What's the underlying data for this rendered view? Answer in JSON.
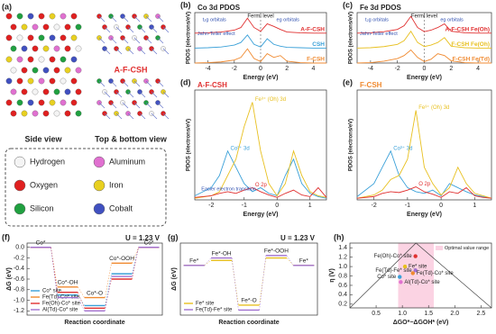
{
  "panel_labels": [
    "(a)",
    "(b)",
    "(c)",
    "(d)",
    "(e)",
    "(f)",
    "(g)",
    "(h)"
  ],
  "structure": {
    "side_label": "Side view",
    "top_label": "Top & bottom view",
    "name": "A-F-CSH"
  },
  "atom_legend": [
    {
      "name": "Hydrogen",
      "color": "#f4f4f4"
    },
    {
      "name": "Aluminum",
      "color": "#e070d0"
    },
    {
      "name": "Oxygen",
      "color": "#e02020"
    },
    {
      "name": "Iron",
      "color": "#e8d020"
    },
    {
      "name": "Silicon",
      "color": "#20a040"
    },
    {
      "name": "Cobalt",
      "color": "#4050c0"
    }
  ],
  "chart_data": [
    {
      "type": "line",
      "title": "Co 3d PDOS",
      "x_label": "Energy (eV)",
      "y_label": "PDOS (electrons/eV)",
      "xlim": [
        -5,
        5
      ],
      "ylim": [
        0,
        13.5
      ],
      "xticks": [
        -4,
        -2,
        0,
        2,
        4
      ],
      "fermi_level": {
        "x": 0,
        "label": "Fermi level"
      },
      "annotations": [
        "t₂g orbitals",
        "eg orbitals",
        "Jahn-Teller effect"
      ],
      "x": [
        -5,
        -4,
        -3,
        -2,
        -1.5,
        -1,
        -0.5,
        0,
        0.5,
        1,
        1.5,
        2,
        3,
        4,
        5
      ],
      "series": [
        {
          "name": "A-F-CSH",
          "color": "#e03030",
          "values": [
            8,
            8.1,
            8.3,
            8.8,
            9.5,
            12,
            9.5,
            8.5,
            10.5,
            9.8,
            9,
            8.3,
            8.1,
            8,
            8
          ]
        },
        {
          "name": "CSH",
          "color": "#3aa0d8",
          "values": [
            4,
            4.1,
            4.3,
            4.8,
            5.5,
            7.5,
            5,
            4.3,
            6.5,
            5,
            4.5,
            4.2,
            4.1,
            4,
            4
          ]
        },
        {
          "name": "F-CSH",
          "color": "#f08a30",
          "values": [
            0,
            0.1,
            0.3,
            0.8,
            1.5,
            3.8,
            1.2,
            0.4,
            2.5,
            1.5,
            2,
            0.5,
            0.1,
            0,
            0
          ]
        }
      ]
    },
    {
      "type": "line",
      "title": "Fe 3d PDOS",
      "x_label": "Energy (eV)",
      "y_label": "PDOS (electrons/eV)",
      "xlim": [
        -5,
        5
      ],
      "ylim": [
        0,
        13.5
      ],
      "xticks": [
        -4,
        -2,
        0,
        2,
        4
      ],
      "fermi_level": {
        "x": 0,
        "label": "Fermi level"
      },
      "annotations": [
        "t₂g orbitals",
        "eg orbitals",
        "Jahn-Teller effect"
      ],
      "x": [
        -5,
        -4,
        -3,
        -2,
        -1.5,
        -1,
        -0.5,
        0,
        0.5,
        1,
        1.5,
        2,
        3,
        4,
        5
      ],
      "series": [
        {
          "name": "A-F-CSH Fe(Oh)",
          "color": "#e03030",
          "values": [
            8,
            8.1,
            8.4,
            9,
            10,
            12.5,
            9.5,
            8.4,
            8.8,
            9.5,
            10.5,
            8.5,
            8.1,
            8,
            8
          ]
        },
        {
          "name": "F-CSH Fe(Oh)",
          "color": "#e8c020",
          "values": [
            4,
            4.1,
            4.4,
            5,
            6,
            8.5,
            5.5,
            4.4,
            4.8,
            5.5,
            6.8,
            4.5,
            4.1,
            4,
            4
          ]
        },
        {
          "name": "F-CSH Fe(Td)",
          "color": "#f08a30",
          "values": [
            0,
            0.1,
            0.5,
            1.2,
            2,
            3.5,
            1.5,
            0.4,
            1,
            2.5,
            2,
            0.6,
            0.1,
            0,
            0
          ]
        }
      ]
    },
    {
      "type": "line",
      "title": "A-F-CSH",
      "title_color": "#e03030",
      "x_label": "Energy (eV)",
      "y_label": "PDOS (electrons/eV)",
      "xlim": [
        -2.5,
        1.5
      ],
      "ylim": [
        0,
        13.5
      ],
      "xticks": [
        -2,
        -1,
        0,
        1
      ],
      "annotations": [
        "Easier electron transition"
      ],
      "x": [
        -2.5,
        -2,
        -1.75,
        -1.5,
        -1.25,
        -1,
        -0.75,
        -0.5,
        -0.25,
        0,
        0.25,
        0.5,
        0.75,
        1,
        1.25,
        1.5
      ],
      "series": [
        {
          "name": "Co³⁺ 3d",
          "color": "#3aa0d8",
          "values": [
            0.5,
            1.5,
            3,
            6,
            4,
            2,
            1,
            1.5,
            0.8,
            0.5,
            3,
            5,
            2,
            0.8,
            0.4,
            0.2
          ]
        },
        {
          "name": "Fe³⁺ (Oh) 3d",
          "color": "#e8c020",
          "values": [
            0.2,
            0.5,
            1,
            3,
            5,
            9,
            12,
            6,
            2,
            0.5,
            2,
            6,
            3,
            1,
            0.5,
            0.3
          ]
        },
        {
          "name": "O 2p",
          "color": "#e03030",
          "values": [
            0.3,
            0.5,
            0.8,
            1,
            0.8,
            1.2,
            1.5,
            1,
            0.6,
            0.3,
            0.8,
            1.2,
            0.6,
            0.4,
            1.5,
            0.3
          ]
        }
      ]
    },
    {
      "type": "line",
      "title": "F-CSH",
      "title_color": "#f08a30",
      "x_label": "Energy (eV)",
      "y_label": "PDOS (electrons/eV)",
      "xlim": [
        -2.5,
        1.5
      ],
      "ylim": [
        0,
        13.5
      ],
      "xticks": [
        -2,
        -1,
        0,
        1
      ],
      "x": [
        -2.5,
        -2,
        -1.75,
        -1.5,
        -1.25,
        -1,
        -0.75,
        -0.5,
        -0.25,
        0,
        0.25,
        0.5,
        0.75,
        1,
        1.25,
        1.5
      ],
      "series": [
        {
          "name": "Co³⁺ 3d",
          "color": "#3aa0d8",
          "values": [
            0.4,
            2,
            4,
            6,
            3,
            1.5,
            1,
            0.8,
            1.2,
            0.5,
            2,
            1.5,
            1,
            0.6,
            0.4,
            0.2
          ]
        },
        {
          "name": "Fe³⁺ (Oh) 3d",
          "color": "#e8c020",
          "values": [
            0.2,
            0.6,
            1.2,
            2.5,
            3,
            5,
            11,
            4,
            2,
            0.6,
            1.5,
            4,
            2,
            0.8,
            0.5,
            0.2
          ]
        },
        {
          "name": "O 2p",
          "color": "#e03030",
          "values": [
            0.2,
            0.4,
            0.8,
            1,
            0.9,
            1.2,
            1.6,
            1,
            0.7,
            0.3,
            1,
            0.8,
            1.5,
            0.5,
            0.3,
            0.2
          ]
        }
      ]
    },
    {
      "type": "energy-diagram",
      "annotation": "U = 1.23 V",
      "x_label": "Reaction coordinate",
      "y_label": "ΔG (eV)",
      "ylim": [
        -1.28,
        0.08
      ],
      "yticks": [
        {
          "value": 0,
          "label": "0.0"
        },
        -0.2,
        -0.4,
        -0.6,
        -0.8,
        {
          "value": -1,
          "label": "-1.0"
        },
        -1.2
      ],
      "categories": [
        "Co*",
        "Co*-OH",
        "Co*-O",
        "Co*-OOH",
        "Co*"
      ],
      "series": [
        {
          "name": "Co* site",
          "color": "#3aa0d8",
          "values": [
            0,
            -0.9,
            -1.1,
            -0.5,
            0
          ]
        },
        {
          "name": "Fe(Td)-Co* site",
          "color": "#f08a30",
          "values": [
            0,
            -0.75,
            -0.95,
            -0.3,
            0
          ]
        },
        {
          "name": "Fe(Oh)-Co* site",
          "color": "#e03030",
          "values": [
            0,
            -0.85,
            -1.15,
            -0.6,
            0
          ]
        },
        {
          "name": "Al(Td)-Co* site",
          "color": "#a070d0",
          "values": [
            0,
            -0.95,
            -1.2,
            -0.55,
            0
          ]
        }
      ]
    },
    {
      "type": "energy-diagram",
      "annotation": "U = 1.23 V",
      "x_label": "Reaction coordinate",
      "y_label": "ΔG (eV)",
      "ylim": [
        -1,
        0.45
      ],
      "categories": [
        "Fe*",
        "Fe*-OH",
        "Fe*-O",
        "Fe*-OOH",
        "Fe*"
      ],
      "series": [
        {
          "name": "Fe* site",
          "color": "#e8c020",
          "values": [
            0,
            0.1,
            -0.8,
            0.15,
            0
          ]
        },
        {
          "name": "Fe(Td)-Fe* site",
          "color": "#a070d0",
          "values": [
            0,
            0.15,
            -0.9,
            0.2,
            0
          ]
        }
      ]
    },
    {
      "type": "scatter",
      "x_label": "ΔGO*−ΔGOH* (eV)",
      "y_label": "η (V)",
      "xlim": [
        0,
        2.7
      ],
      "ylim": [
        0.12,
        1.5
      ],
      "xticks": [
        0.5,
        {
          "value": 1,
          "label": "1.0"
        },
        1.5,
        {
          "value": 2,
          "label": "2.0"
        },
        2.5
      ],
      "yticks": [
        0.2,
        0.4,
        0.6,
        0.8,
        {
          "value": 1,
          "label": "1.0"
        },
        1.2,
        1.4
      ],
      "optimal_range": {
        "label": "Optimal value range",
        "range": [
          0.92,
          1.6
        ]
      },
      "points": [
        {
          "name": "Fe(Oh)-Co* site",
          "color": "#e03030",
          "x": 1.25,
          "y": 1.22
        },
        {
          "name": "Fe* site",
          "color": "#e8c020",
          "x": 1.05,
          "y": 1.0
        },
        {
          "name": "Fe(Td)-Fe* site",
          "color": "#a070d0",
          "x": 1.25,
          "y": 0.92
        },
        {
          "name": "Fe(Td)-Co* site",
          "color": "#f08a30",
          "x": 1.2,
          "y": 0.86
        },
        {
          "name": "Co* site",
          "color": "#3aa0d8",
          "x": 0.95,
          "y": 0.78
        },
        {
          "name": "Al(Td)-Co* site",
          "color": "#e070d0",
          "x": 0.97,
          "y": 0.67
        }
      ]
    }
  ]
}
